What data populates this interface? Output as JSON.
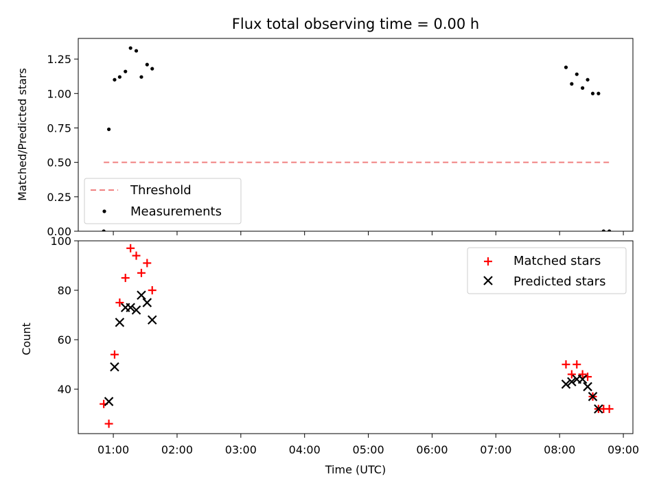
{
  "chart_data": [
    {
      "type": "scatter",
      "title": "Flux total observing time = 0.00 h",
      "xlabel": "",
      "ylabel": "Matched/Predicted stars",
      "ylim": [
        0,
        1.4
      ],
      "yticks": [
        0.0,
        0.25,
        0.5,
        0.75,
        1.0,
        1.25
      ],
      "ytick_labels": [
        "0.00",
        "0.25",
        "0.50",
        "0.75",
        "1.00",
        "1.25"
      ],
      "xlim_hours": [
        0.45,
        9.15
      ],
      "threshold": {
        "name": "Threshold",
        "value": 0.5,
        "x_range": [
          0.85,
          8.78
        ],
        "color": "#f08080",
        "style": "dashed"
      },
      "series": [
        {
          "name": "Measurements",
          "marker": "dot",
          "color": "#000000",
          "x": [
            0.85,
            0.93,
            1.02,
            1.1,
            1.19,
            1.27,
            1.36,
            1.44,
            1.53,
            1.61,
            8.1,
            8.19,
            8.27,
            8.36,
            8.44,
            8.52,
            8.61,
            8.69,
            8.78
          ],
          "y": [
            0.0,
            0.74,
            1.1,
            1.12,
            1.16,
            1.33,
            1.31,
            1.12,
            1.21,
            1.18,
            1.19,
            1.07,
            1.14,
            1.04,
            1.1,
            1.0,
            1.0,
            0.0,
            0.0
          ]
        }
      ],
      "legend_position": "lower left"
    },
    {
      "type": "scatter",
      "title": "",
      "xlabel": "Time (UTC)",
      "ylabel": "Count",
      "ylim": [
        22,
        100
      ],
      "yticks": [
        40,
        60,
        80,
        100
      ],
      "ytick_labels": [
        "40",
        "60",
        "80",
        "100"
      ],
      "xlim_hours": [
        0.45,
        9.15
      ],
      "xticks_hours": [
        1,
        2,
        3,
        4,
        5,
        6,
        7,
        8,
        9
      ],
      "xtick_labels": [
        "01:00",
        "02:00",
        "03:00",
        "04:00",
        "05:00",
        "06:00",
        "07:00",
        "08:00",
        "09:00"
      ],
      "series": [
        {
          "name": "Matched stars",
          "marker": "plus",
          "color": "#ff0000",
          "x": [
            0.85,
            0.93,
            1.02,
            1.1,
            1.19,
            1.27,
            1.36,
            1.44,
            1.53,
            1.61,
            8.1,
            8.19,
            8.27,
            8.36,
            8.44,
            8.52,
            8.61,
            8.69,
            8.78
          ],
          "y": [
            34,
            26,
            54,
            75,
            85,
            97,
            94,
            87,
            91,
            80,
            50,
            46,
            50,
            46,
            45,
            37,
            32,
            32,
            32
          ]
        },
        {
          "name": "Predicted stars",
          "marker": "x",
          "color": "#000000",
          "x": [
            0.93,
            1.02,
            1.1,
            1.19,
            1.27,
            1.36,
            1.44,
            1.53,
            1.61,
            8.1,
            8.19,
            8.27,
            8.36,
            8.44,
            8.52,
            8.61
          ],
          "y": [
            35,
            49,
            67,
            73,
            73,
            72,
            78,
            75,
            68,
            42,
            43,
            44,
            44,
            41,
            37,
            32
          ]
        }
      ],
      "legend_position": "upper right"
    }
  ]
}
